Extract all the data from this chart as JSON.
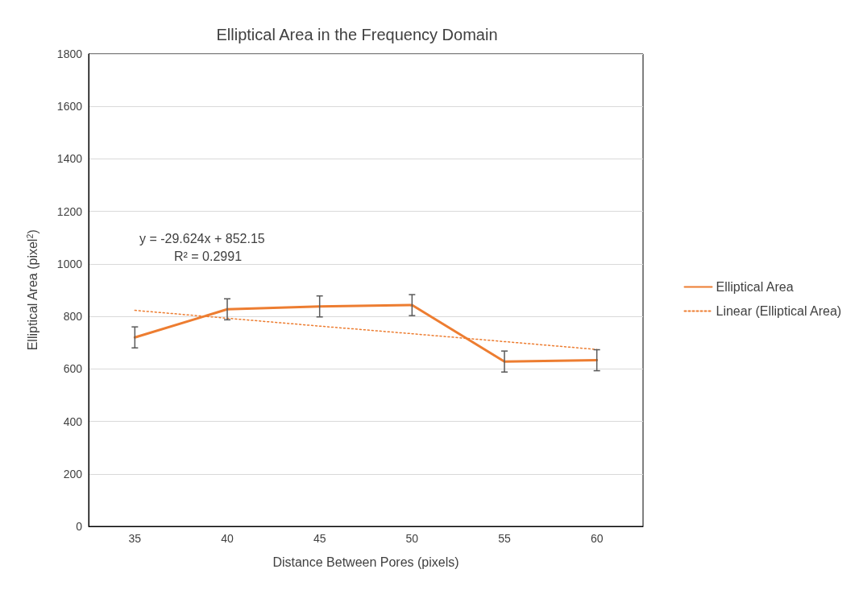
{
  "chart_data": {
    "type": "line",
    "title": "Elliptical Area in the Frequency Domain",
    "xlabel": "Distance Between Pores (pixels)",
    "ylabel": "Elliptical Area (pixel$^{2}$)",
    "categories": [
      "35",
      "40",
      "45",
      "50",
      "55",
      "60"
    ],
    "series": [
      {
        "name": "Elliptical Area",
        "color": "#ed7d31",
        "values": [
          720,
          827,
          838,
          843,
          628,
          633
        ],
        "errors": [
          40,
          40,
          40,
          40,
          40,
          40
        ],
        "line_style": "solid"
      },
      {
        "name": "Linear (Elliptical Area)",
        "type": "line",
        "color": "#ed7d31",
        "x": [
          "35",
          "40",
          "45",
          "50",
          "55",
          "60"
        ],
        "values": [
          823,
          793,
          763,
          734,
          704,
          674
        ],
        "line_style": "dotted"
      }
    ],
    "annotations": [
      "y = -29.624x + 852.15",
      "R² = 0.2991"
    ],
    "ylim": [
      0,
      1800
    ],
    "yticks": [
      0,
      200,
      400,
      600,
      800,
      1000,
      1200,
      1400,
      1600,
      1800
    ],
    "grid": "y",
    "legend": "right",
    "marker": "none"
  }
}
